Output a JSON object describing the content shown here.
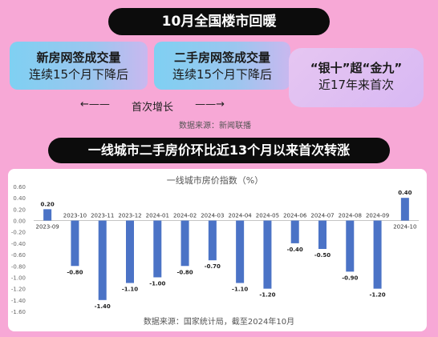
{
  "header": {
    "title": "10月全国楼市回暖"
  },
  "cards": [
    {
      "line1": "新房网签成交量",
      "line2": "连续15个月下降后"
    },
    {
      "line1": "二手房网签成交量",
      "line2": "连续15个月下降后"
    },
    {
      "line1": "“银十”超“金九”",
      "line2": "近17年来首次"
    }
  ],
  "growth": {
    "left_arrow": "←——",
    "label": "首次增长",
    "right_arrow": "——→"
  },
  "source_top": "数据来源：新闻联播",
  "subheader": {
    "title": "一线城市二手房价环比近13个月以来首次转涨"
  },
  "source_bottom": "数据来源：国家统计局，截至2024年10月",
  "colors": {
    "background": "#f7a8d6",
    "bar": "#4b73c6",
    "banner": "#0c0c0c"
  },
  "chart_data": {
    "type": "bar",
    "title": "一线城市房价指数（%）",
    "categories": [
      "2023-09",
      "2023-10",
      "2023-11",
      "2023-12",
      "2024-01",
      "2024-02",
      "2024-03",
      "2024-04",
      "2024-05",
      "2024-06",
      "2024-07",
      "2024-08",
      "2024-09",
      "2024-10"
    ],
    "values": [
      0.2,
      -0.8,
      -1.4,
      -1.1,
      -1.0,
      -0.8,
      -0.7,
      -1.1,
      -1.2,
      -0.4,
      -0.5,
      -0.9,
      -1.2,
      0.4
    ],
    "value_labels": [
      "0.20",
      "-0.80",
      "-1.40",
      "-1.10",
      "-1.00",
      "-0.80",
      "-0.70",
      "-1.10",
      "-1.20",
      "-0.40",
      "-0.50",
      "-0.90",
      "-1.20",
      "0.40"
    ],
    "y_ticks": [
      "0.60",
      "0.40",
      "0.20",
      "0.00",
      "-0.20",
      "-0.40",
      "-0.60",
      "-0.80",
      "-1.00",
      "-1.20",
      "-1.40",
      "-1.60"
    ],
    "ylim": [
      -1.6,
      0.6
    ],
    "grid": false,
    "legend": "none"
  }
}
